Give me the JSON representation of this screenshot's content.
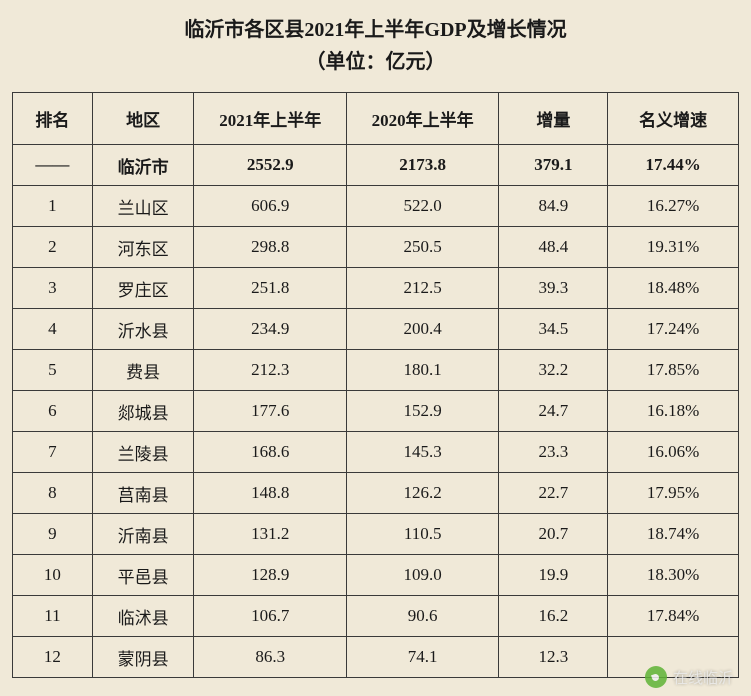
{
  "title": {
    "line1": "临沂市各区县2021年上半年GDP及增长情况",
    "line2": "（单位：亿元）"
  },
  "table": {
    "columns": [
      "排名",
      "地区",
      "2021年上半年",
      "2020年上半年",
      "增量",
      "名义增速"
    ],
    "column_widths_pct": [
      11,
      14,
      21,
      21,
      15,
      18
    ],
    "total_row": [
      "——",
      "临沂市",
      "2552.9",
      "2173.8",
      "379.1",
      "17.44%"
    ],
    "rows": [
      [
        "1",
        "兰山区",
        "606.9",
        "522.0",
        "84.9",
        "16.27%"
      ],
      [
        "2",
        "河东区",
        "298.8",
        "250.5",
        "48.4",
        "19.31%"
      ],
      [
        "3",
        "罗庄区",
        "251.8",
        "212.5",
        "39.3",
        "18.48%"
      ],
      [
        "4",
        "沂水县",
        "234.9",
        "200.4",
        "34.5",
        "17.24%"
      ],
      [
        "5",
        "费县",
        "212.3",
        "180.1",
        "32.2",
        "17.85%"
      ],
      [
        "6",
        "郯城县",
        "177.6",
        "152.9",
        "24.7",
        "16.18%"
      ],
      [
        "7",
        "兰陵县",
        "168.6",
        "145.3",
        "23.3",
        "16.06%"
      ],
      [
        "8",
        "莒南县",
        "148.8",
        "126.2",
        "22.7",
        "17.95%"
      ],
      [
        "9",
        "沂南县",
        "131.2",
        "110.5",
        "20.7",
        "18.74%"
      ],
      [
        "10",
        "平邑县",
        "128.9",
        "109.0",
        "19.9",
        "18.30%"
      ],
      [
        "11",
        "临沭县",
        "106.7",
        "90.6",
        "16.2",
        "17.84%"
      ],
      [
        "12",
        "蒙阴县",
        "86.3",
        "74.1",
        "12.3",
        ""
      ]
    ]
  },
  "styling": {
    "background_color": "#f0e9d8",
    "border_color": "#3a3a3a",
    "text_color": "#1a1a1a",
    "title_fontsize_pt": 15,
    "header_fontsize_pt": 13,
    "cell_fontsize_pt": 13,
    "font_family": "SimSun"
  },
  "watermark": {
    "text": "在线临沂",
    "icon": "wechat-icon",
    "icon_color": "#5fb336"
  }
}
